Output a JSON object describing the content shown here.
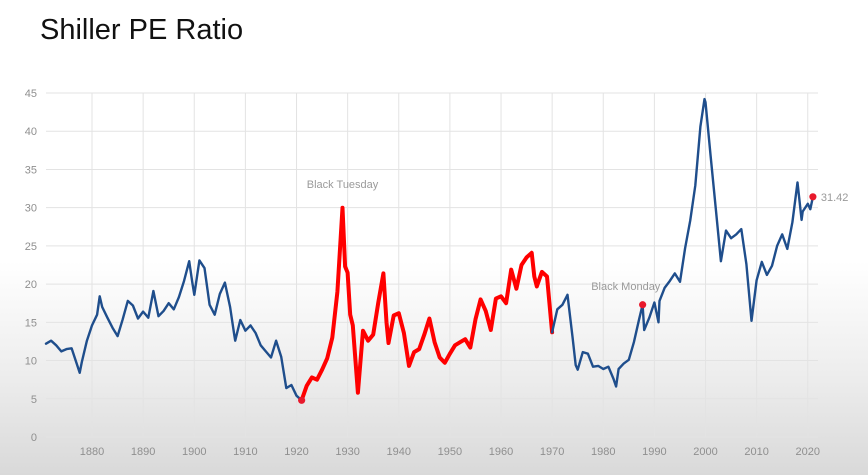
{
  "slide": {
    "title": "Shiller PE Ratio"
  },
  "colors": {
    "base_line": "#1f4e8c",
    "highlight_line": "#ff0000",
    "marker": "#e8192c",
    "grid": "#e3e3e3"
  },
  "chart_data": {
    "type": "line",
    "title": "Shiller PE Ratio",
    "xlabel": "",
    "ylabel": "",
    "xlim": [
      1871,
      2022
    ],
    "ylim": [
      0,
      45
    ],
    "x_ticks": [
      1880,
      1890,
      1900,
      1910,
      1920,
      1930,
      1940,
      1950,
      1960,
      1970,
      1980,
      1990,
      2000,
      2010,
      2020
    ],
    "y_ticks": [
      0,
      5,
      10,
      15,
      20,
      25,
      30,
      35,
      40,
      45
    ],
    "grid": true,
    "series": [
      {
        "style": "base",
        "points": [
          [
            1871,
            12.2
          ],
          [
            1872,
            12.6
          ],
          [
            1873,
            12.0
          ],
          [
            1874,
            11.2
          ],
          [
            1875,
            11.5
          ],
          [
            1876,
            11.6
          ],
          [
            1877,
            9.6
          ],
          [
            1877.6,
            8.4
          ],
          [
            1878,
            9.8
          ],
          [
            1879,
            12.6
          ],
          [
            1880,
            14.6
          ],
          [
            1881,
            16.0
          ],
          [
            1881.5,
            18.4
          ],
          [
            1882,
            17.0
          ],
          [
            1883,
            15.6
          ],
          [
            1884,
            14.3
          ],
          [
            1885,
            13.2
          ],
          [
            1886,
            15.4
          ],
          [
            1887,
            17.8
          ],
          [
            1888,
            17.2
          ],
          [
            1889,
            15.5
          ],
          [
            1890,
            16.4
          ],
          [
            1891,
            15.6
          ],
          [
            1892,
            19.1
          ],
          [
            1893,
            15.8
          ],
          [
            1894,
            16.5
          ],
          [
            1895,
            17.5
          ],
          [
            1896,
            16.7
          ],
          [
            1897,
            18.3
          ],
          [
            1898,
            20.4
          ],
          [
            1899,
            23.0
          ],
          [
            1899.6,
            20.3
          ],
          [
            1900,
            18.6
          ],
          [
            1901,
            23.1
          ],
          [
            1902,
            22.1
          ],
          [
            1903,
            17.3
          ],
          [
            1904,
            16.0
          ],
          [
            1905,
            18.7
          ],
          [
            1906,
            20.2
          ],
          [
            1907,
            17.0
          ],
          [
            1907.8,
            13.5
          ],
          [
            1908,
            12.6
          ],
          [
            1909,
            15.3
          ],
          [
            1910,
            13.9
          ],
          [
            1911,
            14.6
          ],
          [
            1912,
            13.6
          ],
          [
            1913,
            12.0
          ],
          [
            1914,
            11.2
          ],
          [
            1915,
            10.4
          ],
          [
            1916,
            12.6
          ],
          [
            1917,
            10.5
          ],
          [
            1918,
            6.4
          ],
          [
            1919,
            6.8
          ],
          [
            1920,
            5.4
          ],
          [
            1921,
            4.8
          ]
        ]
      },
      {
        "style": "highlight",
        "points": [
          [
            1921,
            4.8
          ],
          [
            1922,
            6.7
          ],
          [
            1923,
            7.8
          ],
          [
            1924,
            7.5
          ],
          [
            1925,
            8.8
          ],
          [
            1926,
            10.3
          ],
          [
            1927,
            13.0
          ],
          [
            1928,
            19.0
          ],
          [
            1929,
            30.0
          ],
          [
            1929.5,
            22.3
          ],
          [
            1930,
            21.5
          ],
          [
            1930.5,
            16.0
          ],
          [
            1931,
            14.6
          ],
          [
            1932,
            5.8
          ],
          [
            1933,
            13.9
          ],
          [
            1934,
            12.6
          ],
          [
            1935,
            13.4
          ],
          [
            1936,
            17.6
          ],
          [
            1937,
            21.4
          ],
          [
            1937.6,
            15.0
          ],
          [
            1938,
            12.3
          ],
          [
            1939,
            15.9
          ],
          [
            1940,
            16.2
          ],
          [
            1941,
            13.6
          ],
          [
            1942,
            9.3
          ],
          [
            1943,
            11.1
          ],
          [
            1944,
            11.5
          ],
          [
            1945,
            13.4
          ],
          [
            1946,
            15.5
          ],
          [
            1947,
            12.4
          ],
          [
            1948,
            10.4
          ],
          [
            1949,
            9.7
          ],
          [
            1950,
            10.9
          ],
          [
            1951,
            12.0
          ],
          [
            1952,
            12.4
          ],
          [
            1953,
            12.8
          ],
          [
            1954,
            11.7
          ],
          [
            1955,
            15.4
          ],
          [
            1956,
            18.0
          ],
          [
            1957,
            16.5
          ],
          [
            1958,
            14.0
          ],
          [
            1959,
            18.1
          ],
          [
            1960,
            18.4
          ],
          [
            1961,
            17.5
          ],
          [
            1962,
            21.9
          ],
          [
            1963,
            19.4
          ],
          [
            1964,
            22.5
          ],
          [
            1965,
            23.5
          ],
          [
            1966,
            24.1
          ],
          [
            1966.5,
            21.0
          ],
          [
            1967,
            19.7
          ],
          [
            1968,
            21.6
          ],
          [
            1969,
            21.0
          ],
          [
            1970,
            13.7
          ]
        ]
      },
      {
        "style": "base",
        "points": [
          [
            1970,
            13.7
          ],
          [
            1971,
            16.7
          ],
          [
            1972,
            17.3
          ],
          [
            1973,
            18.6
          ],
          [
            1974,
            13.0
          ],
          [
            1974.6,
            9.4
          ],
          [
            1975,
            8.8
          ],
          [
            1976,
            11.1
          ],
          [
            1977,
            10.9
          ],
          [
            1978,
            9.2
          ],
          [
            1979,
            9.3
          ],
          [
            1980,
            8.9
          ],
          [
            1981,
            9.2
          ],
          [
            1982,
            7.6
          ],
          [
            1982.5,
            6.6
          ],
          [
            1983,
            8.9
          ],
          [
            1984,
            9.6
          ],
          [
            1985,
            10.1
          ],
          [
            1986,
            12.4
          ],
          [
            1987,
            15.4
          ],
          [
            1987.7,
            17.3
          ],
          [
            1988,
            14.0
          ],
          [
            1989,
            15.6
          ],
          [
            1990,
            17.6
          ],
          [
            1990.8,
            15.0
          ],
          [
            1991,
            17.8
          ],
          [
            1992,
            19.5
          ],
          [
            1993,
            20.4
          ],
          [
            1994,
            21.4
          ],
          [
            1995,
            20.3
          ],
          [
            1996,
            24.7
          ],
          [
            1997,
            28.3
          ],
          [
            1998,
            32.9
          ],
          [
            1999,
            40.6
          ],
          [
            1999.8,
            44.2
          ],
          [
            2000,
            43.8
          ],
          [
            2001,
            36.8
          ],
          [
            2002,
            30.0
          ],
          [
            2003,
            23.0
          ],
          [
            2004,
            27.0
          ],
          [
            2005,
            26.0
          ],
          [
            2006,
            26.5
          ],
          [
            2007,
            27.2
          ],
          [
            2008,
            22.6
          ],
          [
            2009,
            15.2
          ],
          [
            2010,
            20.5
          ],
          [
            2011,
            22.9
          ],
          [
            2012,
            21.2
          ],
          [
            2013,
            22.4
          ],
          [
            2014,
            25.0
          ],
          [
            2015,
            26.5
          ],
          [
            2016,
            24.6
          ],
          [
            2017,
            28.1
          ],
          [
            2018,
            33.3
          ],
          [
            2018.8,
            28.4
          ],
          [
            2019,
            29.5
          ],
          [
            2020,
            30.5
          ],
          [
            2020.5,
            29.8
          ],
          [
            2021,
            31.4
          ]
        ]
      }
    ],
    "markers": [
      {
        "x": 1921,
        "y": 4.8
      },
      {
        "x": 1987.7,
        "y": 17.3
      },
      {
        "x": 2021,
        "y": 31.42
      }
    ],
    "annotations": [
      {
        "text": "Black Tuesday",
        "x": 1929,
        "y": 32.6
      },
      {
        "text": "Black Monday",
        "x": 1984.4,
        "y": 19.2
      },
      {
        "text": "31.42",
        "x": 2021,
        "y": 31.42
      }
    ]
  }
}
